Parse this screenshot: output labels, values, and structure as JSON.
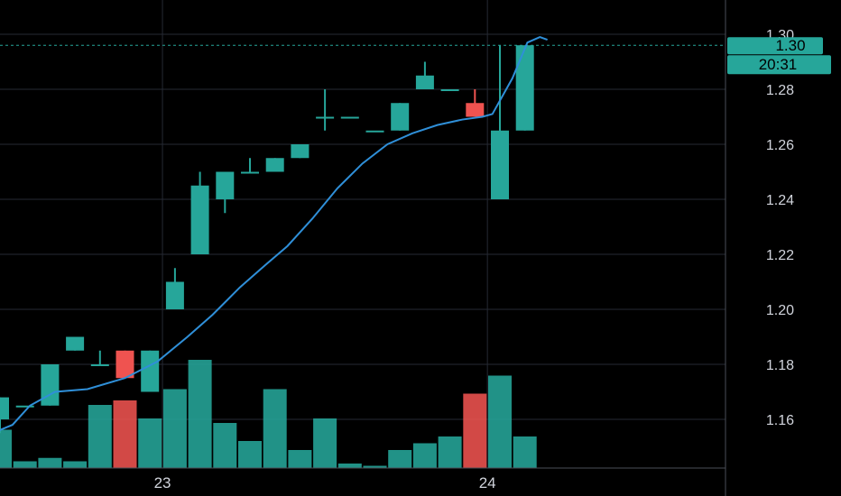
{
  "colors": {
    "up": "#26a69a",
    "down": "#ef5350",
    "ma_line": "#2f8fd8",
    "grid": "#262a33",
    "axis_border": "#4a4e57",
    "price_line": "#26a69a",
    "background": "#000000"
  },
  "price_tag": {
    "price": "1.30",
    "countdown": "20:31",
    "value": 1.296
  },
  "chart_data": {
    "type": "candlestick",
    "title": "",
    "grid": true,
    "y_axis": {
      "position": "right",
      "ticks": [
        "1.16",
        "1.18",
        "1.20",
        "1.22",
        "1.24",
        "1.26",
        "1.28",
        "1.30"
      ],
      "range": [
        1.142,
        1.307
      ]
    },
    "x_axis": {
      "ticks": [
        {
          "label": "23",
          "bar": 6.5
        },
        {
          "label": "24",
          "bar": 19.5
        }
      ]
    },
    "candles": [
      {
        "o": 1.16,
        "h": 1.168,
        "l": 1.155,
        "c": 1.168
      },
      {
        "o": 1.165,
        "h": 1.165,
        "l": 1.165,
        "c": 1.165
      },
      {
        "o": 1.165,
        "h": 1.18,
        "l": 1.165,
        "c": 1.18
      },
      {
        "o": 1.185,
        "h": 1.19,
        "l": 1.185,
        "c": 1.19
      },
      {
        "o": 1.18,
        "h": 1.185,
        "l": 1.18,
        "c": 1.18
      },
      {
        "o": 1.185,
        "h": 1.185,
        "l": 1.175,
        "c": 1.175
      },
      {
        "o": 1.17,
        "h": 1.185,
        "l": 1.17,
        "c": 1.185
      },
      {
        "o": 1.2,
        "h": 1.215,
        "l": 1.2,
        "c": 1.21
      },
      {
        "o": 1.22,
        "h": 1.25,
        "l": 1.22,
        "c": 1.245
      },
      {
        "o": 1.24,
        "h": 1.25,
        "l": 1.235,
        "c": 1.25
      },
      {
        "o": 1.25,
        "h": 1.255,
        "l": 1.25,
        "c": 1.25
      },
      {
        "o": 1.25,
        "h": 1.255,
        "l": 1.25,
        "c": 1.255
      },
      {
        "o": 1.255,
        "h": 1.26,
        "l": 1.255,
        "c": 1.26
      },
      {
        "o": 1.27,
        "h": 1.28,
        "l": 1.265,
        "c": 1.27
      },
      {
        "o": 1.27,
        "h": 1.27,
        "l": 1.27,
        "c": 1.27
      },
      {
        "o": 1.265,
        "h": 1.265,
        "l": 1.265,
        "c": 1.265
      },
      {
        "o": 1.265,
        "h": 1.275,
        "l": 1.265,
        "c": 1.275
      },
      {
        "o": 1.28,
        "h": 1.29,
        "l": 1.28,
        "c": 1.285
      },
      {
        "o": 1.28,
        "h": 1.28,
        "l": 1.28,
        "c": 1.28
      },
      {
        "o": 1.275,
        "h": 1.28,
        "l": 1.27,
        "c": 1.27
      },
      {
        "o": 1.24,
        "h": 1.296,
        "l": 1.24,
        "c": 1.265
      },
      {
        "o": 1.265,
        "h": 1.296,
        "l": 1.265,
        "c": 1.296
      }
    ],
    "volume": [
      0.17,
      0.03,
      0.045,
      0.03,
      0.28,
      0.3,
      0.22,
      0.35,
      0.48,
      0.2,
      0.12,
      0.35,
      0.08,
      0.22,
      0.02,
      0.01,
      0.08,
      0.11,
      0.14,
      0.33,
      0.41,
      0.14
    ],
    "moving_average": [
      {
        "bar": -0.3,
        "v": 1.155
      },
      {
        "bar": 0.5,
        "v": 1.158
      },
      {
        "bar": 1.2,
        "v": 1.165
      },
      {
        "bar": 2.2,
        "v": 1.17
      },
      {
        "bar": 3.5,
        "v": 1.171
      },
      {
        "bar": 5.0,
        "v": 1.175
      },
      {
        "bar": 6.3,
        "v": 1.181
      },
      {
        "bar": 7.5,
        "v": 1.19
      },
      {
        "bar": 8.5,
        "v": 1.198
      },
      {
        "bar": 9.6,
        "v": 1.208
      },
      {
        "bar": 10.6,
        "v": 1.216
      },
      {
        "bar": 11.5,
        "v": 1.223
      },
      {
        "bar": 12.5,
        "v": 1.233
      },
      {
        "bar": 13.5,
        "v": 1.244
      },
      {
        "bar": 14.5,
        "v": 1.253
      },
      {
        "bar": 15.5,
        "v": 1.26
      },
      {
        "bar": 16.5,
        "v": 1.264
      },
      {
        "bar": 17.5,
        "v": 1.267
      },
      {
        "bar": 18.5,
        "v": 1.269
      },
      {
        "bar": 19.3,
        "v": 1.27
      },
      {
        "bar": 19.7,
        "v": 1.271
      },
      {
        "bar": 20.5,
        "v": 1.284
      },
      {
        "bar": 21.1,
        "v": 1.297
      },
      {
        "bar": 21.6,
        "v": 1.299
      },
      {
        "bar": 21.9,
        "v": 1.298
      }
    ]
  }
}
